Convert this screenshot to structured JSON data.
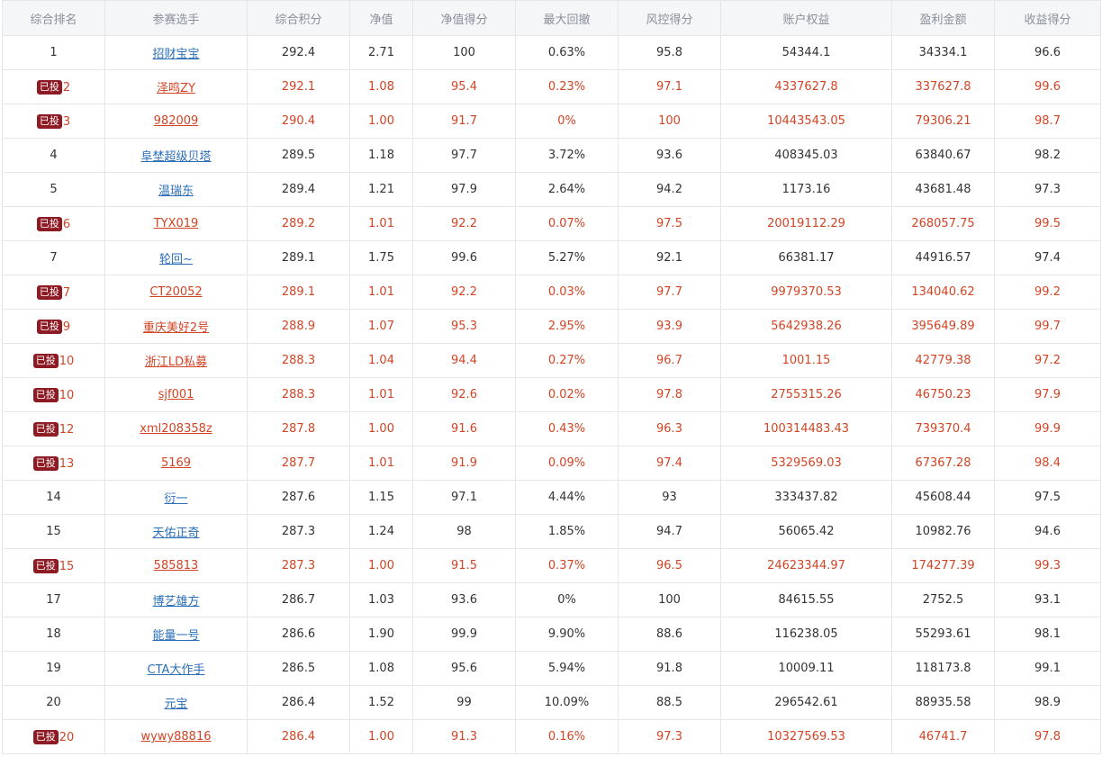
{
  "columns": [
    "综合排名",
    "参赛选手",
    "综合积分",
    "净值",
    "净值得分",
    "最大回撤",
    "风控得分",
    "账户权益",
    "盈利金额",
    "收益得分"
  ],
  "badge_label": "已投",
  "colors": {
    "invested_text": "#d14424",
    "link": "#2a6fb8",
    "badge_bg": "#8e1b24"
  },
  "rows": [
    {
      "rank": "1",
      "badge": "",
      "player": "招财宝宝",
      "score": "292.4",
      "nav": "2.71",
      "nav_score": "100",
      "max_drawdown": "0.63%",
      "risk_score": "95.8",
      "equity": "54344.1",
      "profit": "34334.1",
      "return_score": "96.6"
    },
    {
      "rank": "2",
      "badge": "已投",
      "player": "泽鸣ZY",
      "score": "292.1",
      "nav": "1.08",
      "nav_score": "95.4",
      "max_drawdown": "0.23%",
      "risk_score": "97.1",
      "equity": "4337627.8",
      "profit": "337627.8",
      "return_score": "99.6"
    },
    {
      "rank": "3",
      "badge": "已投",
      "player": "982009",
      "score": "290.4",
      "nav": "1.00",
      "nav_score": "91.7",
      "max_drawdown": "0%",
      "risk_score": "100",
      "equity": "10443543.05",
      "profit": "79306.21",
      "return_score": "98.7"
    },
    {
      "rank": "4",
      "badge": "",
      "player": "阜埜超级贝塔",
      "score": "289.5",
      "nav": "1.18",
      "nav_score": "97.7",
      "max_drawdown": "3.72%",
      "risk_score": "93.6",
      "equity": "408345.03",
      "profit": "63840.67",
      "return_score": "98.2"
    },
    {
      "rank": "5",
      "badge": "",
      "player": "温瑞东",
      "score": "289.4",
      "nav": "1.21",
      "nav_score": "97.9",
      "max_drawdown": "2.64%",
      "risk_score": "94.2",
      "equity": "1173.16",
      "profit": "43681.48",
      "return_score": "97.3"
    },
    {
      "rank": "6",
      "badge": "已投",
      "player": "TYX019",
      "score": "289.2",
      "nav": "1.01",
      "nav_score": "92.2",
      "max_drawdown": "0.07%",
      "risk_score": "97.5",
      "equity": "20019112.29",
      "profit": "268057.75",
      "return_score": "99.5"
    },
    {
      "rank": "7",
      "badge": "",
      "player": "轮回~",
      "score": "289.1",
      "nav": "1.75",
      "nav_score": "99.6",
      "max_drawdown": "5.27%",
      "risk_score": "92.1",
      "equity": "66381.17",
      "profit": "44916.57",
      "return_score": "97.4"
    },
    {
      "rank": "7",
      "badge": "已投",
      "player": "CT20052",
      "score": "289.1",
      "nav": "1.01",
      "nav_score": "92.2",
      "max_drawdown": "0.03%",
      "risk_score": "97.7",
      "equity": "9979370.53",
      "profit": "134040.62",
      "return_score": "99.2"
    },
    {
      "rank": "9",
      "badge": "已投",
      "player": "重庆美好2号",
      "score": "288.9",
      "nav": "1.07",
      "nav_score": "95.3",
      "max_drawdown": "2.95%",
      "risk_score": "93.9",
      "equity": "5642938.26",
      "profit": "395649.89",
      "return_score": "99.7"
    },
    {
      "rank": "10",
      "badge": "已投",
      "player": "浙江LD私募",
      "score": "288.3",
      "nav": "1.04",
      "nav_score": "94.4",
      "max_drawdown": "0.27%",
      "risk_score": "96.7",
      "equity": "1001.15",
      "profit": "42779.38",
      "return_score": "97.2"
    },
    {
      "rank": "10",
      "badge": "已投",
      "player": "sjf001",
      "score": "288.3",
      "nav": "1.01",
      "nav_score": "92.6",
      "max_drawdown": "0.02%",
      "risk_score": "97.8",
      "equity": "2755315.26",
      "profit": "46750.23",
      "return_score": "97.9"
    },
    {
      "rank": "12",
      "badge": "已投",
      "player": "xml208358z",
      "score": "287.8",
      "nav": "1.00",
      "nav_score": "91.6",
      "max_drawdown": "0.43%",
      "risk_score": "96.3",
      "equity": "100314483.43",
      "profit": "739370.4",
      "return_score": "99.9"
    },
    {
      "rank": "13",
      "badge": "已投",
      "player": "5169",
      "score": "287.7",
      "nav": "1.01",
      "nav_score": "91.9",
      "max_drawdown": "0.09%",
      "risk_score": "97.4",
      "equity": "5329569.03",
      "profit": "67367.28",
      "return_score": "98.4"
    },
    {
      "rank": "14",
      "badge": "",
      "player": "衍一",
      "score": "287.6",
      "nav": "1.15",
      "nav_score": "97.1",
      "max_drawdown": "4.44%",
      "risk_score": "93",
      "equity": "333437.82",
      "profit": "45608.44",
      "return_score": "97.5"
    },
    {
      "rank": "15",
      "badge": "",
      "player": "天佑正奇",
      "score": "287.3",
      "nav": "1.24",
      "nav_score": "98",
      "max_drawdown": "1.85%",
      "risk_score": "94.7",
      "equity": "56065.42",
      "profit": "10982.76",
      "return_score": "94.6"
    },
    {
      "rank": "15",
      "badge": "已投",
      "player": "585813",
      "score": "287.3",
      "nav": "1.00",
      "nav_score": "91.5",
      "max_drawdown": "0.37%",
      "risk_score": "96.5",
      "equity": "24623344.97",
      "profit": "174277.39",
      "return_score": "99.3"
    },
    {
      "rank": "17",
      "badge": "",
      "player": "博艺雄方",
      "score": "286.7",
      "nav": "1.03",
      "nav_score": "93.6",
      "max_drawdown": "0%",
      "risk_score": "100",
      "equity": "84615.55",
      "profit": "2752.5",
      "return_score": "93.1"
    },
    {
      "rank": "18",
      "badge": "",
      "player": "能量一号",
      "score": "286.6",
      "nav": "1.90",
      "nav_score": "99.9",
      "max_drawdown": "9.90%",
      "risk_score": "88.6",
      "equity": "116238.05",
      "profit": "55293.61",
      "return_score": "98.1"
    },
    {
      "rank": "19",
      "badge": "",
      "player": "CTA大作手",
      "score": "286.5",
      "nav": "1.08",
      "nav_score": "95.6",
      "max_drawdown": "5.94%",
      "risk_score": "91.8",
      "equity": "10009.11",
      "profit": "118173.8",
      "return_score": "99.1"
    },
    {
      "rank": "20",
      "badge": "",
      "player": "元宝",
      "score": "286.4",
      "nav": "1.52",
      "nav_score": "99",
      "max_drawdown": "10.09%",
      "risk_score": "88.5",
      "equity": "296542.61",
      "profit": "88935.58",
      "return_score": "98.9"
    },
    {
      "rank": "20",
      "badge": "已投",
      "player": "wywy88816",
      "score": "286.4",
      "nav": "1.00",
      "nav_score": "91.3",
      "max_drawdown": "0.16%",
      "risk_score": "97.3",
      "equity": "10327569.53",
      "profit": "46741.7",
      "return_score": "97.8"
    }
  ]
}
